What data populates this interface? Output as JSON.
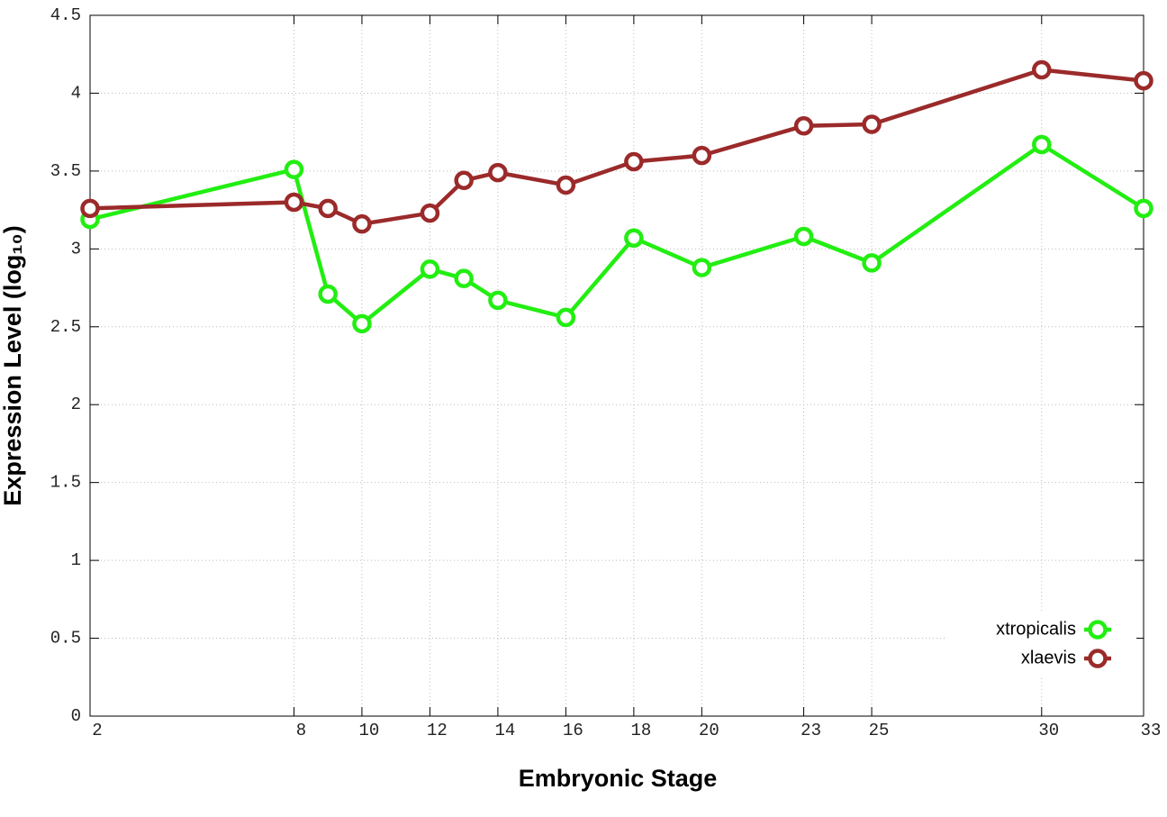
{
  "chart_data": {
    "type": "line",
    "xlabel": "Embryonic Stage",
    "ylabel": "Expression Level (log₁₀)",
    "x": [
      2,
      8,
      9,
      10,
      12,
      13,
      14,
      16,
      18,
      20,
      23,
      25,
      30,
      33
    ],
    "series": [
      {
        "name": "xtropicalis",
        "color": "#22ee11",
        "values": [
          3.19,
          3.51,
          2.71,
          2.52,
          2.87,
          2.81,
          2.67,
          2.56,
          3.07,
          2.88,
          3.08,
          2.91,
          3.67,
          3.26
        ]
      },
      {
        "name": "xlaevis",
        "color": "#9b2a2a",
        "values": [
          3.26,
          3.3,
          3.26,
          3.16,
          3.23,
          3.44,
          3.49,
          3.41,
          3.56,
          3.6,
          3.79,
          3.8,
          4.15,
          4.08
        ]
      }
    ],
    "xlim": [
      2,
      33
    ],
    "xticks": [
      2,
      8,
      10,
      12,
      14,
      16,
      18,
      20,
      23,
      25,
      30,
      33
    ],
    "ylim": [
      0,
      4.5
    ],
    "yticks": [
      0,
      0.5,
      1,
      1.5,
      2,
      2.5,
      3,
      3.5,
      4,
      4.5
    ],
    "grid": true,
    "legend": "lower right"
  }
}
